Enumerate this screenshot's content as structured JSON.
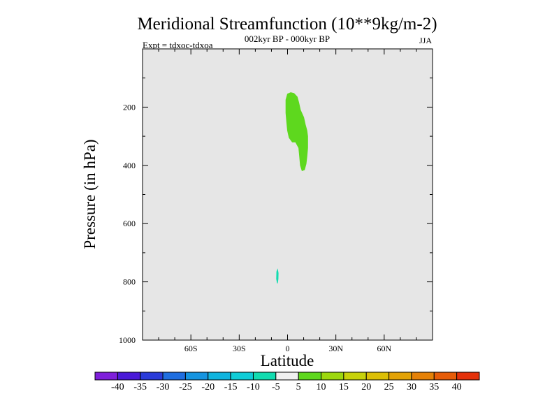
{
  "chart_data": {
    "type": "heatmap",
    "title": "Meridional Streamfunction (10**9kg/m-2)",
    "subtitle_center": "002kyr BP - 000kyr BP",
    "subtitle_left": "Expt = tdxoc-tdxoa",
    "subtitle_right": "JJA",
    "xlabel": "Latitude",
    "ylabel": "Pressure (in hPa)",
    "xlim": [
      -90,
      90
    ],
    "ylim": [
      1000,
      0
    ],
    "x_ticks": [
      {
        "value": -60,
        "label": "60S"
      },
      {
        "value": -30,
        "label": "30S"
      },
      {
        "value": 0,
        "label": "0"
      },
      {
        "value": 30,
        "label": "30N"
      },
      {
        "value": 60,
        "label": "60N"
      }
    ],
    "y_ticks": [
      {
        "value": 200,
        "label": "200"
      },
      {
        "value": 400,
        "label": "400"
      },
      {
        "value": 600,
        "label": "600"
      },
      {
        "value": 800,
        "label": "800"
      },
      {
        "value": 1000,
        "label": "1000"
      }
    ],
    "background_color": "#e6e6e6",
    "colorbar": {
      "colors": [
        "#7f1fdb",
        "#4a1ad8",
        "#2a3bd9",
        "#1f6ee0",
        "#1594e0",
        "#10b4de",
        "#0fcdd8",
        "#12dcb0",
        "#f0f0f0",
        "#5ed81e",
        "#9dd80e",
        "#c8d20a",
        "#dcbf06",
        "#e3a206",
        "#e58107",
        "#e65c08",
        "#e4310a"
      ],
      "labels": [
        "-40",
        "-35",
        "-30",
        "-25",
        "-20",
        "-15",
        "-10",
        "-5",
        "5",
        "10",
        "15",
        "20",
        "25",
        "30",
        "35",
        "40"
      ]
    },
    "regions": [
      {
        "name": "positive-upper-cell",
        "value_range": "5 to 10",
        "color": "#5ed81e",
        "polygon": [
          [
            -1,
            175
          ],
          [
            0,
            155
          ],
          [
            2,
            150
          ],
          [
            4,
            153
          ],
          [
            6,
            165
          ],
          [
            7,
            185
          ],
          [
            8,
            210
          ],
          [
            10,
            235
          ],
          [
            11,
            260
          ],
          [
            12,
            280
          ],
          [
            12.5,
            300
          ],
          [
            12.5,
            340
          ],
          [
            12,
            370
          ],
          [
            11.5,
            395
          ],
          [
            10.5,
            415
          ],
          [
            9,
            418
          ],
          [
            8,
            400
          ],
          [
            7.5,
            370
          ],
          [
            7,
            340
          ],
          [
            5,
            320
          ],
          [
            3,
            320
          ],
          [
            1,
            305
          ],
          [
            0,
            280
          ],
          [
            -0.5,
            250
          ],
          [
            -1,
            220
          ]
        ]
      },
      {
        "name": "negative-lower-cell",
        "value_range": "-10 to -5",
        "color": "#12dcb0",
        "polygon": [
          [
            -6.7,
            765
          ],
          [
            -6.2,
            758
          ],
          [
            -5.8,
            770
          ],
          [
            -5.9,
            790
          ],
          [
            -6.3,
            805
          ],
          [
            -6.8,
            790
          ]
        ]
      }
    ]
  }
}
